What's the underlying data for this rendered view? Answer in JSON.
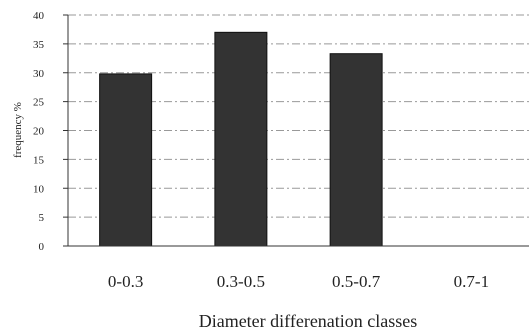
{
  "chart_data": {
    "type": "bar",
    "categories": [
      "0-0.3",
      "0.3-0.5",
      "0.5-0.7",
      "0.7-1"
    ],
    "values": [
      29.8,
      37.0,
      33.3,
      0
    ],
    "title": "",
    "xlabel": "Diameter differenation classes",
    "ylabel": "frequency %",
    "ylim": [
      0,
      40
    ],
    "yticks": [
      0,
      5,
      10,
      15,
      20,
      25,
      30,
      35,
      40
    ],
    "grid": true,
    "bar_color": "#333333",
    "grid_color": "#999999"
  }
}
